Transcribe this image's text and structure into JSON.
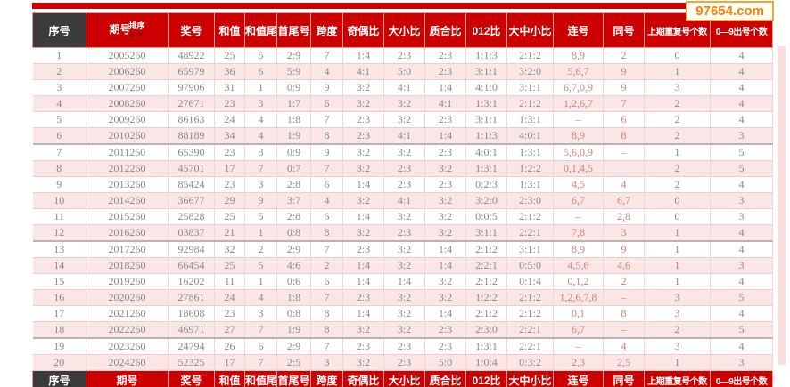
{
  "site": {
    "logo": "97654.com"
  },
  "colors": {
    "header_red": "#cc0001",
    "header_dark": "#3b3b3b",
    "row_pink": "#fbe6e6",
    "row_white": "#ffffff",
    "body_text": "#8a8a8a",
    "special_text": "#d07f7f",
    "logo_orange": "#ff7f00",
    "logo_border": "#e9a93d"
  },
  "table": {
    "sort_label": "排序",
    "sort_arrows": "▲▼",
    "columns": [
      "序号",
      "期号",
      "奖号",
      "和值",
      "和值尾",
      "首尾号",
      "跨度",
      "奇偶比",
      "大小比",
      "质合比",
      "012比",
      "大中小比",
      "连号",
      "同号",
      "上期重复号个数",
      "0—9出号个数"
    ],
    "rows": [
      [
        "1",
        "2005260",
        "48922",
        "25",
        "5",
        "2:9",
        "7",
        "1:4",
        "2:3",
        "2:3",
        "1:1:3",
        "2:1:2",
        "8,9",
        "2",
        "0",
        "4"
      ],
      [
        "2",
        "2006260",
        "65979",
        "36",
        "6",
        "5:9",
        "4",
        "4:1",
        "5:0",
        "2:3",
        "3:1:1",
        "3:2:0",
        "5,6,7",
        "9",
        "1",
        "4"
      ],
      [
        "3",
        "2007260",
        "97906",
        "31",
        "1",
        "0:9",
        "9",
        "3:2",
        "4:1",
        "1:4",
        "4:1:0",
        "3:1:1",
        "6,7,0,9",
        "9",
        "3",
        "4"
      ],
      [
        "4",
        "2008260",
        "27671",
        "23",
        "3",
        "1:7",
        "6",
        "3:2",
        "3:2",
        "4:1",
        "1:3:1",
        "2:1:2",
        "1,2,6,7",
        "7",
        "2",
        "4"
      ],
      [
        "5",
        "2009260",
        "86163",
        "24",
        "4",
        "1:8",
        "7",
        "2:3",
        "3:2",
        "2:3",
        "3:1:1",
        "1:3:1",
        "–",
        "6",
        "2",
        "4"
      ],
      [
        "6",
        "2010260",
        "88189",
        "34",
        "4",
        "1:9",
        "8",
        "2:3",
        "4:1",
        "1:4",
        "1:1:3",
        "4:0:1",
        "8,9",
        "8",
        "2",
        "3"
      ],
      [
        "7",
        "2011260",
        "65390",
        "23",
        "3",
        "0:9",
        "9",
        "3:2",
        "3:2",
        "2:3",
        "4:0:1",
        "1:3:1",
        "5,6,0,9",
        "–",
        "1",
        "5"
      ],
      [
        "8",
        "2012260",
        "45701",
        "17",
        "7",
        "0:7",
        "7",
        "3:2",
        "2:3",
        "3:2",
        "1:3:1",
        "1:2:2",
        "0,1,4,5",
        "",
        "2",
        "5"
      ],
      [
        "9",
        "2013260",
        "85424",
        "23",
        "3",
        "2:8",
        "6",
        "1:4",
        "2:3",
        "2:3",
        "0:2:3",
        "1:3:1",
        "4,5",
        "4",
        "2",
        "4"
      ],
      [
        "10",
        "2014260",
        "36677",
        "29",
        "9",
        "3:7",
        "4",
        "3:2",
        "4:1",
        "3:2",
        "3:2:0",
        "2:3:0",
        "6,7",
        "6,7",
        "0",
        "3"
      ],
      [
        "11",
        "2015260",
        "25828",
        "25",
        "5",
        "2:8",
        "6",
        "1:4",
        "3:2",
        "3:2",
        "0:0:5",
        "2:1:2",
        "–",
        "2,8",
        "0",
        "3"
      ],
      [
        "12",
        "2016260",
        "03837",
        "21",
        "1",
        "0:8",
        "8",
        "3:2",
        "2:3",
        "3:2",
        "3:1:1",
        "2:2:1",
        "7,8",
        "3",
        "1",
        "4"
      ],
      [
        "13",
        "2017260",
        "92984",
        "32",
        "2",
        "2:9",
        "7",
        "2:3",
        "3:2",
        "1:4",
        "2:1:2",
        "3:1:1",
        "8,9",
        "9",
        "1",
        "4"
      ],
      [
        "14",
        "2018260",
        "66454",
        "25",
        "5",
        "4:6",
        "2",
        "1:4",
        "3:2",
        "1:4",
        "2:2:1",
        "0:5:0",
        "4,5,6",
        "4,6",
        "1",
        "3"
      ],
      [
        "15",
        "2019260",
        "16202",
        "11",
        "1",
        "0:6",
        "6",
        "1:4",
        "1:4",
        "3:2",
        "2:1:2",
        "0:1:4",
        "0,1,2",
        "2",
        "1",
        "4"
      ],
      [
        "16",
        "2020260",
        "27861",
        "24",
        "4",
        "1:8",
        "7",
        "2:3",
        "3:2",
        "3:2",
        "1:2:2",
        "2:1:2",
        "1,2,6,7,8",
        "–",
        "3",
        "5"
      ],
      [
        "17",
        "2021260",
        "18608",
        "23",
        "3",
        "0:8",
        "8",
        "1:4",
        "3:2",
        "1:4",
        "2:1:2",
        "2:1:2",
        "0,1",
        "8",
        "3",
        "4"
      ],
      [
        "18",
        "2022260",
        "46971",
        "27",
        "7",
        "1:9",
        "8",
        "3:2",
        "3:2",
        "2:3",
        "2:3:0",
        "2:2:1",
        "6,7",
        "–",
        "2",
        "5"
      ],
      [
        "19",
        "2023260",
        "24794",
        "26",
        "6",
        "2:9",
        "7",
        "2:3",
        "2:3",
        "2:3",
        "1:3:1",
        "2:2:1",
        "–",
        "4",
        "3",
        "4"
      ],
      [
        "20",
        "2024260",
        "52325",
        "17",
        "7",
        "2:5",
        "3",
        "3:2",
        "2:3",
        "5:0",
        "1:0:4",
        "0:3:2",
        "2,3",
        "2,5",
        "1",
        "3"
      ]
    ]
  }
}
